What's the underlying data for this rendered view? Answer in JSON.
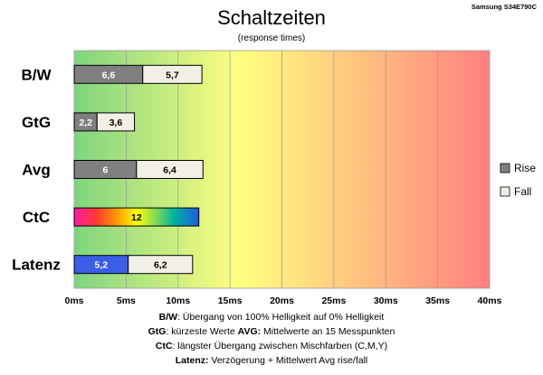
{
  "header": {
    "title": "Schaltzeiten",
    "subtitle": "(response times)",
    "model": "Samsung S34E790C"
  },
  "chart_data": {
    "type": "bar",
    "orientation": "horizontal",
    "stacked": true,
    "categories": [
      "B/W",
      "GtG",
      "Avg",
      "CtC",
      "Latenz"
    ],
    "series": [
      {
        "name": "Rise",
        "values": [
          6.6,
          2.2,
          6,
          null,
          5.2
        ],
        "labels": [
          "6,6",
          "2,2",
          "6",
          "",
          "5,2"
        ],
        "color": "#7f7f7f"
      },
      {
        "name": "Fall",
        "values": [
          5.7,
          3.6,
          6.4,
          null,
          6.2
        ],
        "labels": [
          "5,7",
          "3,6",
          "6,4",
          "",
          "6,2"
        ],
        "color": "#f2f0e6"
      }
    ],
    "ctc": {
      "value": 12,
      "label": "12"
    },
    "latenz_rise_color": "#3b5ee8",
    "xlim": [
      0,
      40
    ],
    "xticks": [
      0,
      5,
      10,
      15,
      20,
      25,
      30,
      35,
      40
    ],
    "xtick_labels": [
      "0ms",
      "5ms",
      "10ms",
      "15ms",
      "20ms",
      "25ms",
      "30ms",
      "35ms",
      "40ms"
    ],
    "background_gradient": [
      "#7fd47f",
      "#ffff80",
      "#ff8080"
    ],
    "grid": true,
    "legend_position": "right"
  },
  "legend": {
    "items": [
      {
        "label": "Rise",
        "color": "#7f7f7f"
      },
      {
        "label": "Fall",
        "color": "#f2f0e6"
      }
    ]
  },
  "notes": [
    {
      "parts": [
        {
          "text": "B/W",
          "bold": true
        },
        {
          "text": ":  Übergang von 100% Helligkeit auf 0% Helligkeit",
          "bold": false
        }
      ]
    },
    {
      "parts": [
        {
          "text": "GtG",
          "bold": true
        },
        {
          "text": ": kürzeste  Werte        ",
          "bold": false
        },
        {
          "text": "AVG:",
          "bold": true
        },
        {
          "text": " Mittelwerte  an 15 Messpunkten",
          "bold": false
        }
      ]
    },
    {
      "parts": [
        {
          "text": "CtC",
          "bold": true
        },
        {
          "text": ": längster Übergang  zwischen Mischfarben  (C,M,Y)",
          "bold": false
        }
      ]
    },
    {
      "parts": [
        {
          "text": "Latenz:",
          "bold": true
        },
        {
          "text": " Verzögerung  + Mittelwert Avg rise/fall",
          "bold": false
        }
      ]
    }
  ]
}
